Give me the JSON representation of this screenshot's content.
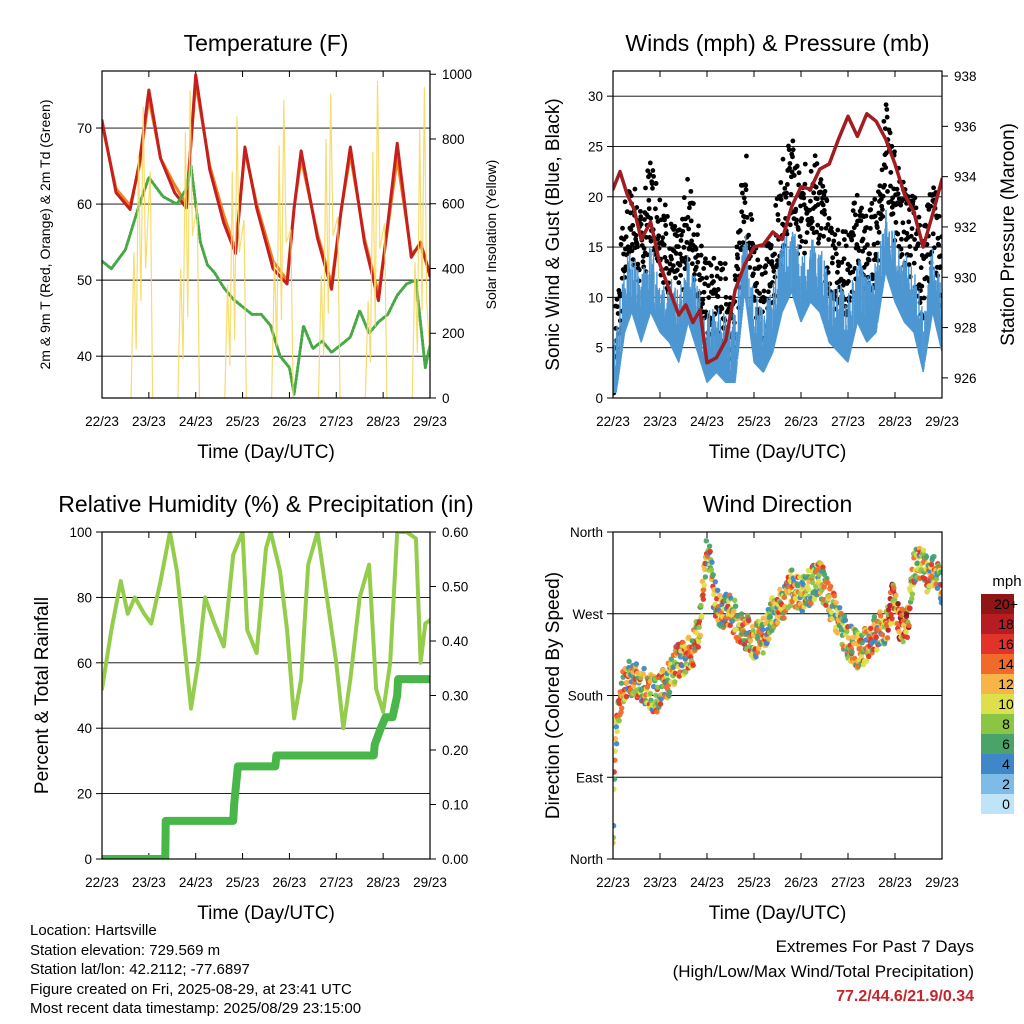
{
  "time_ticks": [
    "22/23",
    "23/23",
    "24/23",
    "25/23",
    "26/23",
    "27/23",
    "28/23",
    "29/23"
  ],
  "colors": {
    "temp2m": "#c6201e",
    "temp9m": "#f08020",
    "dewpoint": "#48a845",
    "solar": "#f6d860",
    "gust": "#000000",
    "wind": "#4d97d2",
    "pressure": "#a11d22",
    "rh": "#94cc4c",
    "precip": "#48b648"
  },
  "chart_data": [
    {
      "type": "line",
      "title": "Temperature (F)",
      "xlabel": "Time (Day/UTC)",
      "ylabel": "2m & 9m T (Red, Orange) & 2m Td (Green)",
      "ylabel_right": "Solar Insolation (Yellow)",
      "xlim": [
        0,
        7
      ],
      "ylim": [
        34.5,
        77.5
      ],
      "yticks": [
        40,
        50,
        60,
        70
      ],
      "y2lim": [
        0,
        1010
      ],
      "y2ticks": [
        0,
        200,
        400,
        600,
        800,
        1000
      ],
      "grid": true,
      "series": [
        {
          "key": "temp9m",
          "x": [
            0,
            0.3,
            0.6,
            0.8,
            1.0,
            1.25,
            1.55,
            1.8,
            2.0,
            2.3,
            2.6,
            2.85,
            3.05,
            3.3,
            3.65,
            3.95,
            4.1,
            4.25,
            4.6,
            4.9,
            5.1,
            5.3,
            5.6,
            5.9,
            6.1,
            6.3,
            6.6,
            6.8,
            7.0
          ],
          "values": [
            70.5,
            62,
            59.8,
            65,
            74,
            66,
            62.5,
            60,
            76,
            65,
            58.5,
            54,
            67,
            60,
            52.5,
            50,
            59.5,
            66,
            56,
            49.5,
            59,
            66.5,
            55.5,
            48.2,
            57,
            66,
            53.5,
            54.5,
            51
          ]
        },
        {
          "key": "temp2m",
          "x": [
            0,
            0.3,
            0.6,
            0.8,
            1.0,
            1.25,
            1.55,
            1.8,
            2.0,
            2.3,
            2.6,
            2.85,
            3.05,
            3.3,
            3.65,
            3.95,
            4.1,
            4.25,
            4.6,
            4.9,
            5.1,
            5.3,
            5.6,
            5.9,
            6.1,
            6.3,
            6.6,
            6.8,
            7.0
          ],
          "values": [
            71,
            61.5,
            59.3,
            65.5,
            75,
            66,
            61.5,
            59.5,
            77,
            64.5,
            57.5,
            53.5,
            67.5,
            59.5,
            51.5,
            49.5,
            59.5,
            67,
            55.5,
            48.8,
            59,
            67.5,
            55,
            47.3,
            57.5,
            68,
            53,
            55,
            50.5
          ]
        },
        {
          "key": "dewpoint",
          "x": [
            0,
            0.2,
            0.5,
            0.8,
            1.0,
            1.3,
            1.6,
            1.8,
            1.9,
            2.1,
            2.25,
            2.4,
            2.6,
            2.8,
            3.0,
            3.2,
            3.4,
            3.6,
            3.8,
            4.0,
            4.1,
            4.3,
            4.5,
            4.7,
            4.9,
            5.1,
            5.3,
            5.5,
            5.7,
            5.9,
            6.1,
            6.3,
            6.5,
            6.7,
            6.9,
            7.0
          ],
          "values": [
            52.5,
            51.5,
            54,
            60,
            63.5,
            61,
            60,
            62,
            65,
            55,
            52,
            51,
            49,
            47.5,
            46.5,
            45.5,
            45.5,
            44,
            40,
            38.5,
            35,
            44,
            41,
            42,
            40.5,
            41.5,
            42.5,
            46,
            43,
            44.5,
            45.5,
            48,
            49.5,
            50,
            38.5,
            41.5
          ]
        },
        {
          "key": "solar",
          "axis": "right",
          "x": [
            0,
            0.62,
            0.68,
            0.73,
            0.78,
            0.83,
            0.88,
            0.93,
            1.03,
            1.08,
            1.62,
            1.68,
            1.73,
            1.78,
            1.83,
            1.88,
            1.93,
            2.03,
            2.08,
            2.62,
            2.68,
            2.73,
            2.78,
            2.83,
            2.88,
            2.93,
            3.03,
            3.08,
            3.62,
            3.68,
            3.73,
            3.78,
            3.83,
            3.88,
            3.93,
            4.03,
            4.08,
            4.62,
            4.68,
            4.73,
            4.78,
            4.83,
            4.88,
            4.93,
            5.03,
            5.08,
            5.62,
            5.68,
            5.73,
            5.78,
            5.83,
            5.88,
            5.93,
            6.03,
            6.08,
            6.62,
            6.68,
            6.73,
            6.78,
            6.83,
            6.88,
            6.93,
            7.0
          ],
          "values": [
            0,
            0,
            450,
            150,
            750,
            300,
            900,
            400,
            700,
            0,
            0,
            400,
            120,
            820,
            250,
            950,
            500,
            600,
            0,
            0,
            350,
            100,
            700,
            180,
            870,
            450,
            550,
            0,
            0,
            420,
            160,
            780,
            240,
            920,
            480,
            520,
            0,
            0,
            380,
            130,
            800,
            260,
            940,
            500,
            560,
            0,
            0,
            300,
            110,
            760,
            220,
            980,
            460,
            540,
            0,
            0,
            420,
            140,
            830,
            270,
            960,
            300,
            120
          ]
        }
      ]
    },
    {
      "type": "line",
      "title": "Winds (mph) & Pressure (mb)",
      "xlabel": "Time (Day/UTC)",
      "ylabel": "Sonic Wind & Gust (Blue, Black)",
      "ylabel_right": "Station Pressure (Maroon)",
      "xlim": [
        0,
        7
      ],
      "ylim": [
        0,
        32.5
      ],
      "yticks": [
        0,
        5,
        10,
        15,
        20,
        25,
        30
      ],
      "y2lim": [
        925.2,
        938.2
      ],
      "y2ticks": [
        926,
        928,
        930,
        932,
        934,
        936,
        938
      ],
      "grid": true,
      "series": [
        {
          "key": "gust",
          "x": [
            0,
            0.1,
            0.25,
            0.4,
            0.6,
            0.8,
            1.0,
            1.2,
            1.4,
            1.6,
            1.8,
            2.0,
            2.2,
            2.4,
            2.6,
            2.8,
            3.0,
            3.2,
            3.4,
            3.6,
            3.8,
            4.0,
            4.2,
            4.4,
            4.6,
            4.8,
            5.0,
            5.2,
            5.4,
            5.6,
            5.8,
            6.0,
            6.2,
            6.4,
            6.6,
            6.8,
            7.0
          ],
          "values": [
            3,
            8,
            15,
            18,
            14,
            20,
            17,
            14,
            12,
            18,
            14,
            9,
            10,
            9,
            8,
            22,
            12,
            10,
            13,
            19,
            22,
            17,
            21,
            19,
            14,
            13,
            12,
            17,
            14,
            16,
            25,
            20,
            17,
            16,
            12,
            18,
            13
          ]
        },
        {
          "key": "wind",
          "x": [
            0,
            0.1,
            0.25,
            0.4,
            0.6,
            0.8,
            1.0,
            1.2,
            1.4,
            1.6,
            1.8,
            2.0,
            2.2,
            2.4,
            2.6,
            2.8,
            3.0,
            3.2,
            3.4,
            3.6,
            3.8,
            4.0,
            4.2,
            4.4,
            4.6,
            4.8,
            5.0,
            5.2,
            5.4,
            5.6,
            5.8,
            6.0,
            6.2,
            6.4,
            6.6,
            6.8,
            7.0
          ],
          "values": [
            2,
            5,
            10,
            12,
            9,
            12,
            10,
            9,
            7,
            11,
            8,
            5,
            6,
            5,
            5,
            14,
            7,
            6,
            8,
            12,
            14,
            11,
            13,
            12,
            9,
            8,
            7,
            11,
            9,
            10,
            16,
            13,
            11,
            10,
            6,
            12,
            8
          ]
        },
        {
          "key": "pressure",
          "axis": "right",
          "x": [
            0,
            0.15,
            0.3,
            0.45,
            0.6,
            0.8,
            1.0,
            1.2,
            1.4,
            1.55,
            1.7,
            1.85,
            2.0,
            2.2,
            2.4,
            2.6,
            2.8,
            3.0,
            3.2,
            3.4,
            3.6,
            3.8,
            4.0,
            4.2,
            4.4,
            4.6,
            4.8,
            5.0,
            5.2,
            5.4,
            5.6,
            5.8,
            6.0,
            6.2,
            6.4,
            6.6,
            6.8,
            7.0
          ],
          "values": [
            933.5,
            934.2,
            933.3,
            932.7,
            931.5,
            932.2,
            930.5,
            929.5,
            928.5,
            928.9,
            928.2,
            928.7,
            926.6,
            926.8,
            927.5,
            929.5,
            930.5,
            931.2,
            931.3,
            931.8,
            931.5,
            932.8,
            933.6,
            933.5,
            934.3,
            934.5,
            935.5,
            936.4,
            935.6,
            936.5,
            936.2,
            935.5,
            934.5,
            933.3,
            932.6,
            931.2,
            932.5,
            933.9
          ]
        }
      ]
    },
    {
      "type": "line",
      "title": "Relative Humidity (%) & Precipitation (in)",
      "xlabel": "Time (Day/UTC)",
      "ylabel": "Percent & Total Rainfall",
      "xlim": [
        0,
        7
      ],
      "ylim": [
        0,
        100
      ],
      "yticks": [
        0,
        20,
        40,
        60,
        80,
        100
      ],
      "y2lim": [
        0,
        0.6
      ],
      "y2ticks": [
        "0.00",
        "0.10",
        "0.20",
        "0.30",
        "0.40",
        "0.50",
        "0.60"
      ],
      "grid": true,
      "series": [
        {
          "key": "rh",
          "x": [
            0,
            0.2,
            0.4,
            0.55,
            0.7,
            0.9,
            1.05,
            1.25,
            1.45,
            1.6,
            1.8,
            1.9,
            2.05,
            2.2,
            2.4,
            2.6,
            2.8,
            3.0,
            3.1,
            3.3,
            3.5,
            3.6,
            3.8,
            3.95,
            4.1,
            4.25,
            4.4,
            4.6,
            4.8,
            5.0,
            5.15,
            5.3,
            5.5,
            5.7,
            5.85,
            6.0,
            6.15,
            6.3,
            6.5,
            6.7,
            6.8,
            6.9,
            7.0
          ],
          "values": [
            52,
            70,
            85,
            75,
            80,
            75,
            72,
            85,
            100,
            88,
            60,
            46,
            60,
            80,
            72,
            65,
            93,
            100,
            70,
            63,
            95,
            100,
            88,
            70,
            43,
            55,
            90,
            100,
            80,
            60,
            40,
            55,
            80,
            90,
            52,
            45,
            60,
            100,
            100,
            98,
            60,
            72,
            73
          ]
        },
        {
          "key": "precip",
          "axis": "right",
          "x": [
            0,
            1.35,
            1.36,
            1.5,
            2.8,
            2.82,
            2.9,
            3.7,
            3.72,
            4.2,
            5.5,
            5.8,
            5.82,
            5.95,
            6.05,
            6.08,
            6.2,
            6.3,
            6.32,
            6.45,
            7.0
          ],
          "values": [
            0,
            0,
            0.07,
            0.07,
            0.07,
            0.1,
            0.17,
            0.17,
            0.19,
            0.19,
            0.19,
            0.19,
            0.21,
            0.24,
            0.26,
            0.26,
            0.26,
            0.3,
            0.33,
            0.33,
            0.33
          ]
        }
      ]
    },
    {
      "type": "scatter",
      "title": "Wind Direction",
      "xlabel": "Time (Day/UTC)",
      "ylabel": "Direction (Colored By Speed)",
      "xlim": [
        0,
        7
      ],
      "ylim": [
        0,
        360
      ],
      "ytick_labels": [
        "North",
        "East",
        "South",
        "West",
        "North"
      ],
      "yticks": [
        0,
        90,
        180,
        270,
        360
      ],
      "grid": true,
      "direction_track": {
        "x": [
          0,
          0.05,
          0.1,
          0.2,
          0.35,
          0.5,
          0.7,
          0.9,
          1.0,
          1.2,
          1.35,
          1.5,
          1.7,
          1.85,
          2.0,
          2.15,
          2.3,
          2.5,
          2.7,
          2.85,
          3.0,
          3.2,
          3.4,
          3.6,
          3.8,
          4.0,
          4.2,
          4.4,
          4.6,
          4.8,
          5.0,
          5.2,
          5.4,
          5.6,
          5.8,
          5.95,
          6.1,
          6.25,
          6.4,
          6.55,
          6.7,
          6.85,
          7.0
        ],
        "values": [
          20,
          140,
          150,
          190,
          200,
          195,
          190,
          180,
          185,
          200,
          215,
          220,
          230,
          260,
          350,
          290,
          270,
          275,
          255,
          250,
          240,
          245,
          270,
          280,
          300,
          290,
          300,
          310,
          285,
          260,
          240,
          230,
          235,
          250,
          255,
          285,
          260,
          255,
          320,
          330,
          310,
          320,
          300
        ]
      },
      "colorbar": {
        "title": "mph",
        "labels": [
          "0",
          "2",
          "4",
          "6",
          "8",
          "10",
          "12",
          "14",
          "16",
          "18",
          "20+"
        ],
        "colors": [
          "#bfe3f7",
          "#7ebce8",
          "#3f87c6",
          "#4aa46a",
          "#8cc444",
          "#dde04a",
          "#f9b447",
          "#f16a2c",
          "#e2332a",
          "#b71c22",
          "#8f1517"
        ]
      }
    }
  ],
  "info": {
    "location": "Location: Hartsville",
    "elevation": "Station elevation: 729.569 m",
    "latlon": "Station lat/lon: 42.2112; -77.6897",
    "created": "Figure created on Fri, 2025-08-29, at 23:41 UTC",
    "latest": "Most recent data timestamp: 2025/08/29 23:15:00"
  },
  "extremes": {
    "title": "Extremes For Past 7 Days",
    "subtitle": "(High/Low/Max Wind/Total Precipitation)",
    "values": "77.2/44.6/21.9/0.34"
  }
}
